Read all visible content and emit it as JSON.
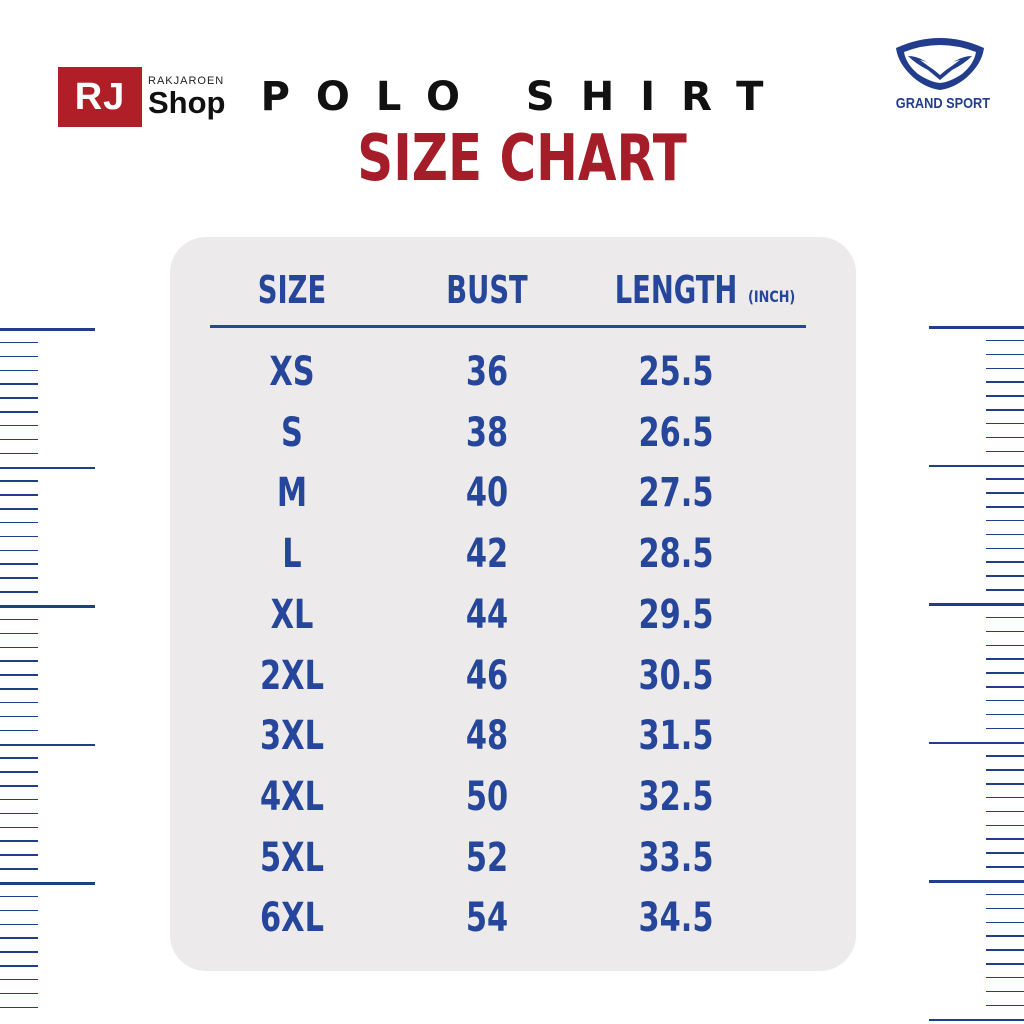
{
  "brand": {
    "logo_letters": "RJ",
    "logo_small": "RAKJAROEN",
    "logo_shop": "Shop",
    "partner_name": "GRAND SPORT"
  },
  "title": {
    "line1": "POLO SHIRT",
    "line2": "SIZE CHART"
  },
  "colors": {
    "navy": "#25469a",
    "red": "#a41d28",
    "panel": "#eceaea"
  },
  "table": {
    "headers": {
      "size": "SIZE",
      "bust": "BUST",
      "length": "LENGTH",
      "unit": "(INCH)"
    },
    "rows": [
      {
        "size": "XS",
        "bust": "36",
        "length": "25.5"
      },
      {
        "size": "S",
        "bust": "38",
        "length": "26.5"
      },
      {
        "size": "M",
        "bust": "40",
        "length": "27.5"
      },
      {
        "size": "L",
        "bust": "42",
        "length": "28.5"
      },
      {
        "size": "XL",
        "bust": "44",
        "length": "29.5"
      },
      {
        "size": "2XL",
        "bust": "46",
        "length": "30.5"
      },
      {
        "size": "3XL",
        "bust": "48",
        "length": "31.5"
      },
      {
        "size": "4XL",
        "bust": "50",
        "length": "32.5"
      },
      {
        "size": "5XL",
        "bust": "52",
        "length": "33.5"
      },
      {
        "size": "6XL",
        "bust": "54",
        "length": "34.5"
      }
    ]
  }
}
